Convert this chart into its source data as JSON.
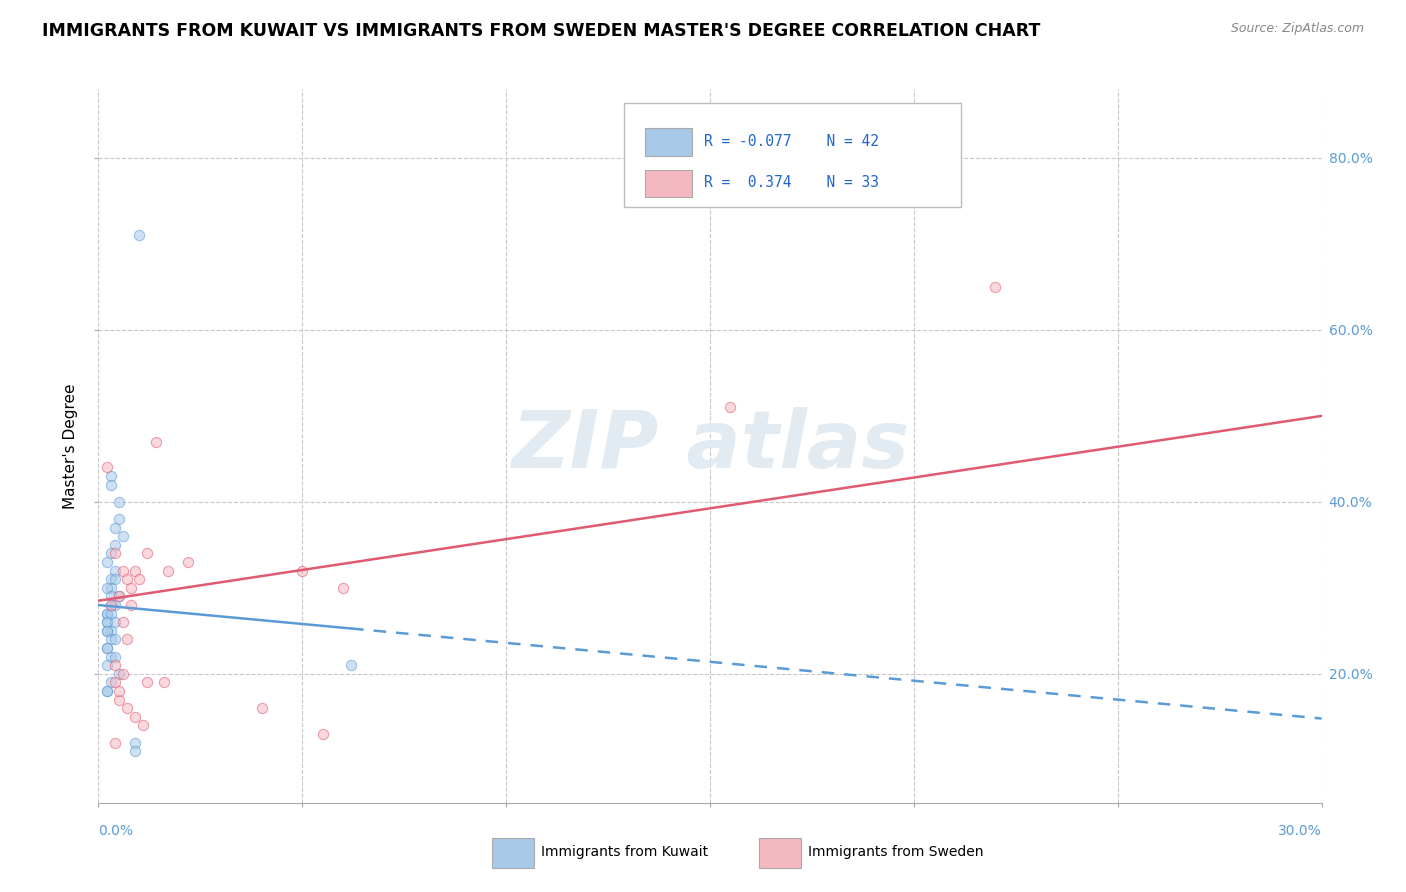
{
  "title": "IMMIGRANTS FROM KUWAIT VS IMMIGRANTS FROM SWEDEN MASTER'S DEGREE CORRELATION CHART",
  "source": "Source: ZipAtlas.com",
  "ylabel": "Master's Degree",
  "right_yticks": [
    "80.0%",
    "60.0%",
    "40.0%",
    "20.0%"
  ],
  "right_ytick_vals": [
    0.8,
    0.6,
    0.4,
    0.2
  ],
  "xlim": [
    0.0,
    0.3
  ],
  "ylim": [
    0.05,
    0.88
  ],
  "color_kuwait": "#a8c8e8",
  "color_sweden": "#f4b8c0",
  "color_kuwait_line": "#5b9bd5",
  "color_sweden_line": "#e05a72",
  "kuwait_x": [
    0.01,
    0.003,
    0.003,
    0.005,
    0.005,
    0.004,
    0.006,
    0.004,
    0.003,
    0.002,
    0.004,
    0.003,
    0.004,
    0.003,
    0.002,
    0.005,
    0.003,
    0.003,
    0.004,
    0.002,
    0.002,
    0.003,
    0.002,
    0.002,
    0.004,
    0.003,
    0.002,
    0.002,
    0.003,
    0.004,
    0.002,
    0.002,
    0.003,
    0.004,
    0.002,
    0.062,
    0.005,
    0.003,
    0.002,
    0.002,
    0.009,
    0.009
  ],
  "kuwait_y": [
    0.71,
    0.43,
    0.42,
    0.4,
    0.38,
    0.37,
    0.36,
    0.35,
    0.34,
    0.33,
    0.32,
    0.31,
    0.31,
    0.3,
    0.3,
    0.29,
    0.29,
    0.28,
    0.28,
    0.27,
    0.27,
    0.27,
    0.26,
    0.26,
    0.26,
    0.25,
    0.25,
    0.25,
    0.24,
    0.24,
    0.23,
    0.23,
    0.22,
    0.22,
    0.21,
    0.21,
    0.2,
    0.19,
    0.18,
    0.18,
    0.12,
    0.11
  ],
  "sweden_x": [
    0.002,
    0.004,
    0.003,
    0.006,
    0.005,
    0.004,
    0.007,
    0.005,
    0.004,
    0.008,
    0.006,
    0.005,
    0.009,
    0.007,
    0.006,
    0.012,
    0.008,
    0.007,
    0.014,
    0.01,
    0.009,
    0.017,
    0.012,
    0.011,
    0.022,
    0.016,
    0.05,
    0.06,
    0.04,
    0.055,
    0.22,
    0.155,
    0.004
  ],
  "sweden_y": [
    0.44,
    0.34,
    0.28,
    0.32,
    0.29,
    0.19,
    0.31,
    0.17,
    0.21,
    0.3,
    0.26,
    0.18,
    0.32,
    0.24,
    0.2,
    0.34,
    0.28,
    0.16,
    0.47,
    0.31,
    0.15,
    0.32,
    0.19,
    0.14,
    0.33,
    0.19,
    0.32,
    0.3,
    0.16,
    0.13,
    0.65,
    0.51,
    0.12
  ],
  "trend_kuwait_x0": 0.0,
  "trend_kuwait_y0": 0.28,
  "trend_kuwait_x1": 0.3,
  "trend_kuwait_y1": 0.148,
  "trend_kuwait_solid_end": 0.062,
  "trend_sweden_x0": 0.0,
  "trend_sweden_y0": 0.285,
  "trend_sweden_x1": 0.3,
  "trend_sweden_y1": 0.5,
  "trend_sweden_solid_end": 0.3
}
